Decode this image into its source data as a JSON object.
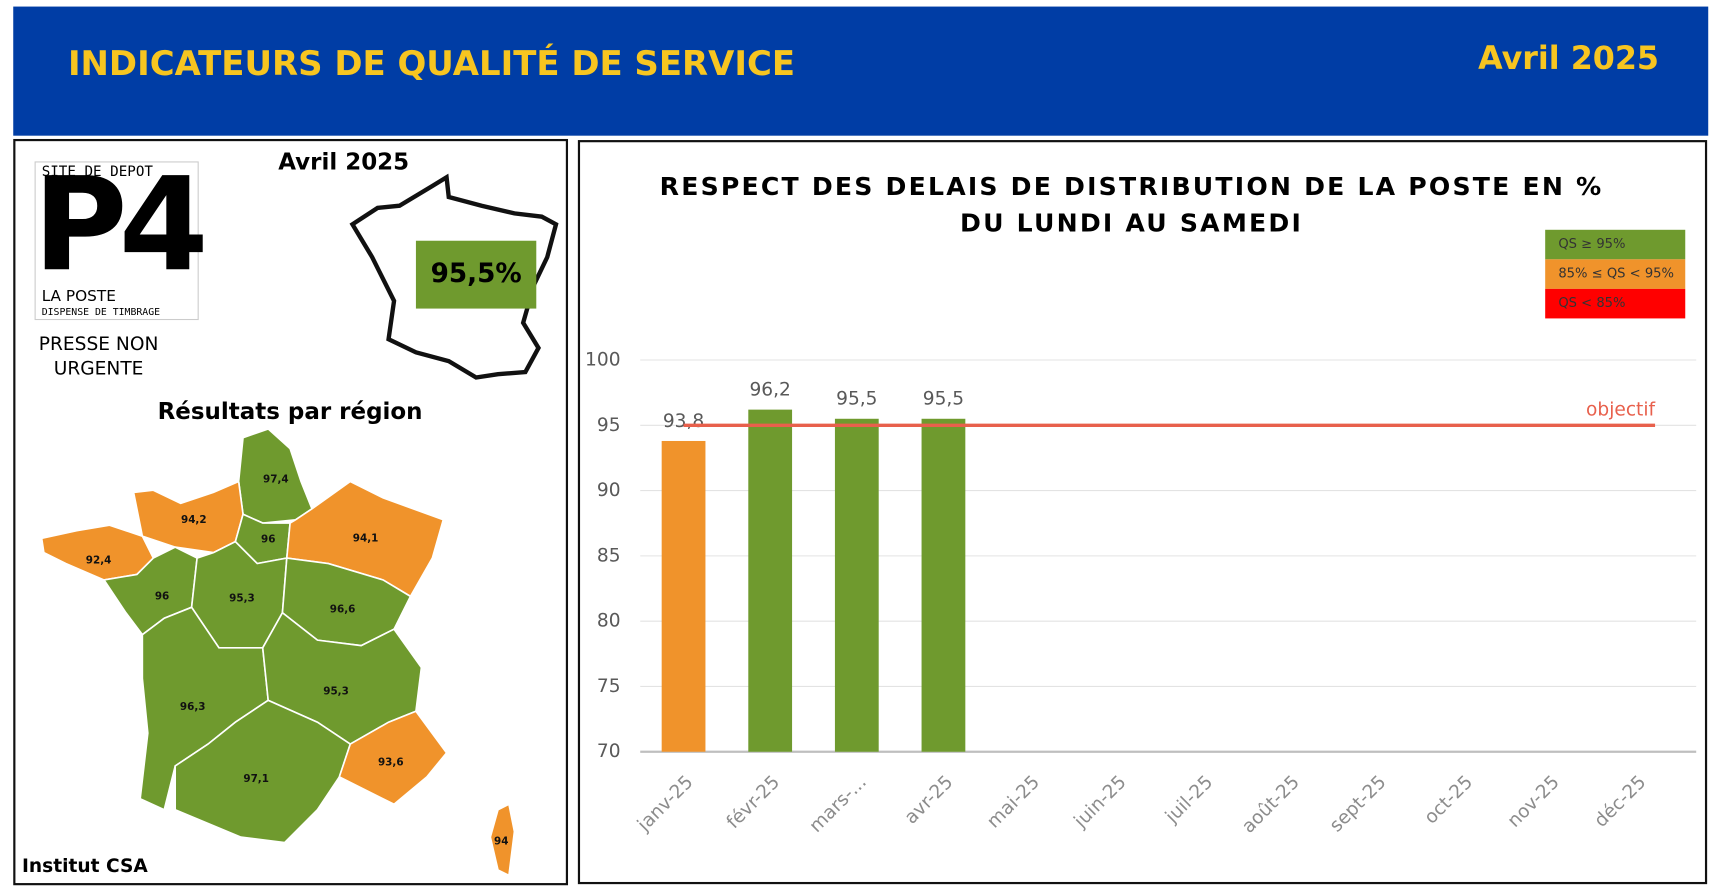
{
  "header": {
    "title": "INDICATEURS DE QUALITÉ DE SERVICE",
    "period": "Avril 2025"
  },
  "left_panel": {
    "logo": {
      "top": "SITE DE DEPOT",
      "big": "P4",
      "line1": "LA POSTE",
      "line2": "DISPENSE DE TIMBRAGE"
    },
    "category": [
      "PRESSE NON",
      "URGENTE"
    ],
    "period": "Avril 2025",
    "national": {
      "label": "95,5%",
      "color": "#6f9a2e"
    },
    "map_title": "Résultats par région",
    "regions": [
      {
        "label": "97,4",
        "color": "#6f9a2e"
      },
      {
        "label": "94,2",
        "color": "#f0932b"
      },
      {
        "label": "96",
        "color": "#6f9a2e"
      },
      {
        "label": "94,1",
        "color": "#f0932b"
      },
      {
        "label": "92,4",
        "color": "#f0932b"
      },
      {
        "label": "96",
        "color": "#6f9a2e"
      },
      {
        "label": "95,3",
        "color": "#6f9a2e"
      },
      {
        "label": "96,6",
        "color": "#6f9a2e"
      },
      {
        "label": "96,3",
        "color": "#6f9a2e"
      },
      {
        "label": "95,3",
        "color": "#6f9a2e"
      },
      {
        "label": "97,1",
        "color": "#6f9a2e"
      },
      {
        "label": "93,6",
        "color": "#f0932b"
      },
      {
        "label": "94",
        "color": "#f0932b"
      }
    ],
    "source": "Institut CSA"
  },
  "chart_data": {
    "type": "bar",
    "title": [
      "RESPECT DES DELAIS DE DISTRIBUTION DE LA POSTE EN %",
      "DU LUNDI AU SAMEDI"
    ],
    "categories": [
      "janv-25",
      "févr-25",
      "mars-...",
      "avr-25",
      "mai-25",
      "juin-25",
      "juil-25",
      "août-25",
      "sept-25",
      "oct-25",
      "nov-25",
      "déc-25"
    ],
    "values": [
      93.8,
      96.2,
      95.5,
      95.5,
      null,
      null,
      null,
      null,
      null,
      null,
      null,
      null
    ],
    "value_labels": [
      "93,8",
      "96,2",
      "95,5",
      "95,5",
      null,
      null,
      null,
      null,
      null,
      null,
      null,
      null
    ],
    "colors": [
      "#f0932b",
      "#6f9a2e",
      "#6f9a2e",
      "#6f9a2e",
      null,
      null,
      null,
      null,
      null,
      null,
      null,
      null
    ],
    "ylim": [
      70,
      100
    ],
    "yticks": [
      70,
      75,
      80,
      85,
      90,
      95,
      100
    ],
    "grid": true,
    "target": {
      "value": 95,
      "label": "objectif",
      "color": "#e8604c"
    },
    "legend": [
      {
        "label": "QS ≥ 95%",
        "color": "#6f9a2e"
      },
      {
        "label": "85% ≤ QS < 95%",
        "color": "#f0932b"
      },
      {
        "label": "QS < 85%",
        "color": "#ff0000"
      }
    ]
  }
}
